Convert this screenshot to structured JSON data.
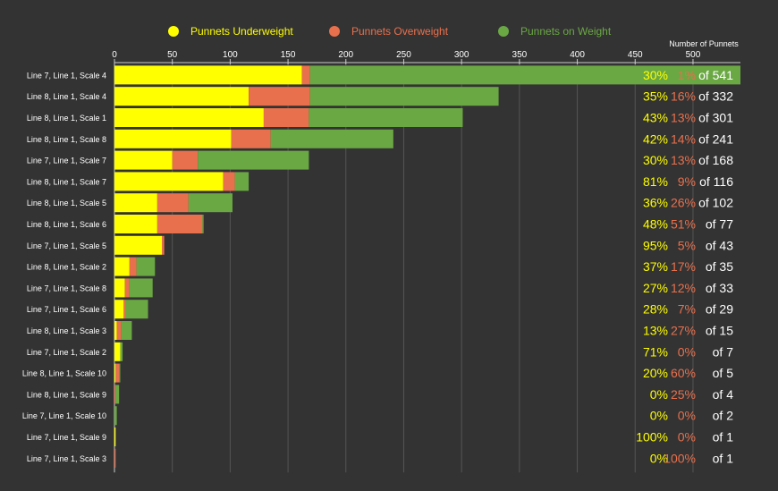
{
  "chart_data": {
    "type": "bar",
    "stacked": true,
    "orientation": "horizontal",
    "axis_title": "Number of Punnets",
    "xlim": [
      0,
      541
    ],
    "ticks": [
      0,
      50,
      100,
      150,
      200,
      250,
      300,
      350,
      400,
      450,
      500
    ],
    "series": [
      {
        "key": "under",
        "name": "Punnets Underweight",
        "color": "#ffff00"
      },
      {
        "key": "over",
        "name": "Punnets Overweight",
        "color": "#e8704d"
      },
      {
        "key": "on",
        "name": "Punnets on Weight",
        "color": "#6aa843"
      }
    ],
    "rows": [
      {
        "label": "Line 7, Line 1, Scale 4",
        "under": 162,
        "over": 7,
        "on": 372,
        "total_text": "of 541",
        "under_pct": "30%",
        "over_pct": "1%"
      },
      {
        "label": "Line 8, Line 1, Scale 4",
        "under": 116,
        "over": 53,
        "on": 163,
        "total_text": "of 332",
        "under_pct": "35%",
        "over_pct": "16%"
      },
      {
        "label": "Line 8, Line 1, Scale 1",
        "under": 129,
        "over": 39,
        "on": 133,
        "total_text": "of 301",
        "under_pct": "43%",
        "over_pct": "13%"
      },
      {
        "label": "Line 8, Line 1, Scale 8",
        "under": 101,
        "over": 34,
        "on": 106,
        "total_text": "of 241",
        "under_pct": "42%",
        "over_pct": "14%"
      },
      {
        "label": "Line 7, Line 1, Scale 7",
        "under": 50,
        "over": 22,
        "on": 96,
        "total_text": "of 168",
        "under_pct": "30%",
        "over_pct": "13%"
      },
      {
        "label": "Line 8, Line 1, Scale 7",
        "under": 94,
        "over": 10,
        "on": 12,
        "total_text": "of 116",
        "under_pct": "81%",
        "over_pct": "9%"
      },
      {
        "label": "Line 8, Line 1, Scale 5",
        "under": 37,
        "over": 27,
        "on": 38,
        "total_text": "of 102",
        "under_pct": "36%",
        "over_pct": "26%"
      },
      {
        "label": "Line 8, Line 1, Scale 6",
        "under": 37,
        "over": 39,
        "on": 1,
        "total_text": "of 77",
        "under_pct": "48%",
        "over_pct": "51%"
      },
      {
        "label": "Line 7, Line 1, Scale 5",
        "under": 41,
        "over": 2,
        "on": 0,
        "total_text": "of 43",
        "under_pct": "95%",
        "over_pct": "5%"
      },
      {
        "label": "Line 8, Line 1, Scale 2",
        "under": 13,
        "over": 6,
        "on": 16,
        "total_text": "of 35",
        "under_pct": "37%",
        "over_pct": "17%"
      },
      {
        "label": "Line 7, Line 1, Scale 8",
        "under": 9,
        "over": 4,
        "on": 20,
        "total_text": "of 33",
        "under_pct": "27%",
        "over_pct": "12%"
      },
      {
        "label": "Line 7, Line 1, Scale 6",
        "under": 8,
        "over": 2,
        "on": 19,
        "total_text": "of 29",
        "under_pct": "28%",
        "over_pct": "7%"
      },
      {
        "label": "Line 8, Line 1, Scale 3",
        "under": 2,
        "over": 4,
        "on": 9,
        "total_text": "of 15",
        "under_pct": "13%",
        "over_pct": "27%"
      },
      {
        "label": "Line 7, Line 1, Scale 2",
        "under": 5,
        "over": 0,
        "on": 2,
        "total_text": "of 7",
        "under_pct": "71%",
        "over_pct": "0%"
      },
      {
        "label": "Line 8, Line 1, Scale 10",
        "under": 1,
        "over": 3,
        "on": 1,
        "total_text": "of 5",
        "under_pct": "20%",
        "over_pct": "60%"
      },
      {
        "label": "Line 8, Line 1, Scale 9",
        "under": 0,
        "over": 1,
        "on": 3,
        "total_text": "of 4",
        "under_pct": "0%",
        "over_pct": "25%"
      },
      {
        "label": "Line 7, Line 1, Scale 10",
        "under": 0,
        "over": 0,
        "on": 2,
        "total_text": "of 2",
        "under_pct": "0%",
        "over_pct": "0%"
      },
      {
        "label": "Line 7, Line 1, Scale 9",
        "under": 1,
        "over": 0,
        "on": 0,
        "total_text": "of 1",
        "under_pct": "100%",
        "over_pct": "0%"
      },
      {
        "label": "Line 7, Line 1, Scale 3",
        "under": 0,
        "over": 1,
        "on": 0,
        "total_text": "of 1",
        "under_pct": "0%",
        "over_pct": "100%"
      }
    ]
  }
}
